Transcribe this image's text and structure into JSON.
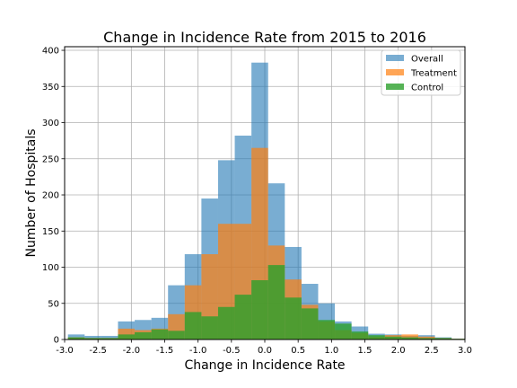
{
  "chart_data": {
    "type": "histogram",
    "title": "Change in Incidence Rate from 2015 to 2016",
    "xlabel": "Change in Incidence Rate",
    "ylabel": "Number of Hospitals",
    "xlim": [
      -3.0,
      3.0
    ],
    "ylim": [
      0,
      405
    ],
    "grid": true,
    "legend_position": "top-right",
    "xticks": [
      "-3.0",
      "-2.5",
      "-2.0",
      "-1.5",
      "-1.0",
      "-0.5",
      "0.0",
      "0.5",
      "1.0",
      "1.5",
      "2.0",
      "2.5",
      "3.0"
    ],
    "yticks": [
      "0",
      "50",
      "100",
      "150",
      "200",
      "250",
      "300",
      "350",
      "400"
    ],
    "xtick_values": [
      -3.0,
      -2.5,
      -2.0,
      -1.5,
      -1.0,
      -0.5,
      0.0,
      0.5,
      1.0,
      1.5,
      2.0,
      2.5,
      3.0
    ],
    "ytick_values": [
      0,
      50,
      100,
      150,
      200,
      250,
      300,
      350,
      400
    ],
    "series": [
      {
        "name": "Overall",
        "color": "#1f77b4",
        "opacity": 0.6,
        "bins": [
          [
            -2.95,
            -2.7,
            7
          ],
          [
            -2.7,
            -2.45,
            5
          ],
          [
            -2.45,
            -2.2,
            5
          ],
          [
            -2.2,
            -1.95,
            25
          ],
          [
            -1.95,
            -1.7,
            27
          ],
          [
            -1.7,
            -1.45,
            30
          ],
          [
            -1.45,
            -1.2,
            75
          ],
          [
            -1.2,
            -0.95,
            118
          ],
          [
            -0.95,
            -0.7,
            195
          ],
          [
            -0.7,
            -0.45,
            248
          ],
          [
            -0.45,
            -0.2,
            282
          ],
          [
            -0.2,
            0.05,
            383
          ],
          [
            0.05,
            0.3,
            216
          ],
          [
            0.3,
            0.55,
            128
          ],
          [
            0.55,
            0.8,
            77
          ],
          [
            0.8,
            1.05,
            50
          ],
          [
            1.05,
            1.3,
            25
          ],
          [
            1.3,
            1.55,
            18
          ],
          [
            1.55,
            1.8,
            8
          ],
          [
            1.8,
            2.05,
            7
          ],
          [
            2.05,
            2.3,
            5
          ],
          [
            2.3,
            2.55,
            6
          ],
          [
            2.55,
            2.8,
            3
          ],
          [
            2.8,
            3.05,
            1
          ]
        ]
      },
      {
        "name": "Treatment",
        "color": "#ff7f0e",
        "opacity": 0.7,
        "bins": [
          [
            -2.95,
            -2.7,
            3
          ],
          [
            -2.7,
            -2.45,
            2
          ],
          [
            -2.45,
            -2.2,
            2
          ],
          [
            -2.2,
            -1.95,
            15
          ],
          [
            -1.95,
            -1.7,
            13
          ],
          [
            -1.7,
            -1.45,
            15
          ],
          [
            -1.45,
            -1.2,
            35
          ],
          [
            -1.2,
            -0.95,
            75
          ],
          [
            -0.95,
            -0.7,
            118
          ],
          [
            -0.7,
            -0.45,
            160
          ],
          [
            -0.45,
            -0.2,
            160
          ],
          [
            -0.2,
            0.05,
            265
          ],
          [
            0.05,
            0.3,
            130
          ],
          [
            0.3,
            0.55,
            83
          ],
          [
            0.55,
            0.8,
            48
          ],
          [
            0.8,
            1.05,
            25
          ],
          [
            1.05,
            1.3,
            13
          ],
          [
            1.3,
            1.55,
            9
          ],
          [
            1.55,
            1.8,
            4
          ],
          [
            1.8,
            2.05,
            6
          ],
          [
            2.05,
            2.3,
            7
          ],
          [
            2.3,
            2.55,
            4
          ],
          [
            2.55,
            2.8,
            2
          ],
          [
            2.8,
            3.05,
            1
          ]
        ]
      },
      {
        "name": "Control",
        "color": "#2ca02c",
        "opacity": 0.8,
        "bins": [
          [
            -2.95,
            -2.7,
            3
          ],
          [
            -2.7,
            -2.45,
            2
          ],
          [
            -2.45,
            -2.2,
            2
          ],
          [
            -2.2,
            -1.95,
            7
          ],
          [
            -1.95,
            -1.7,
            10
          ],
          [
            -1.7,
            -1.45,
            14
          ],
          [
            -1.45,
            -1.2,
            12
          ],
          [
            -1.2,
            -0.95,
            38
          ],
          [
            -0.95,
            -0.7,
            32
          ],
          [
            -0.7,
            -0.45,
            45
          ],
          [
            -0.45,
            -0.2,
            62
          ],
          [
            -0.2,
            0.05,
            82
          ],
          [
            0.05,
            0.3,
            103
          ],
          [
            0.3,
            0.55,
            58
          ],
          [
            0.55,
            0.8,
            43
          ],
          [
            0.8,
            1.05,
            27
          ],
          [
            1.05,
            1.3,
            22
          ],
          [
            1.3,
            1.55,
            11
          ],
          [
            1.55,
            1.8,
            6
          ],
          [
            1.8,
            2.05,
            4
          ],
          [
            2.05,
            2.3,
            3
          ],
          [
            2.3,
            2.55,
            2
          ],
          [
            2.55,
            2.8,
            2
          ],
          [
            2.8,
            3.05,
            1
          ]
        ]
      }
    ]
  }
}
